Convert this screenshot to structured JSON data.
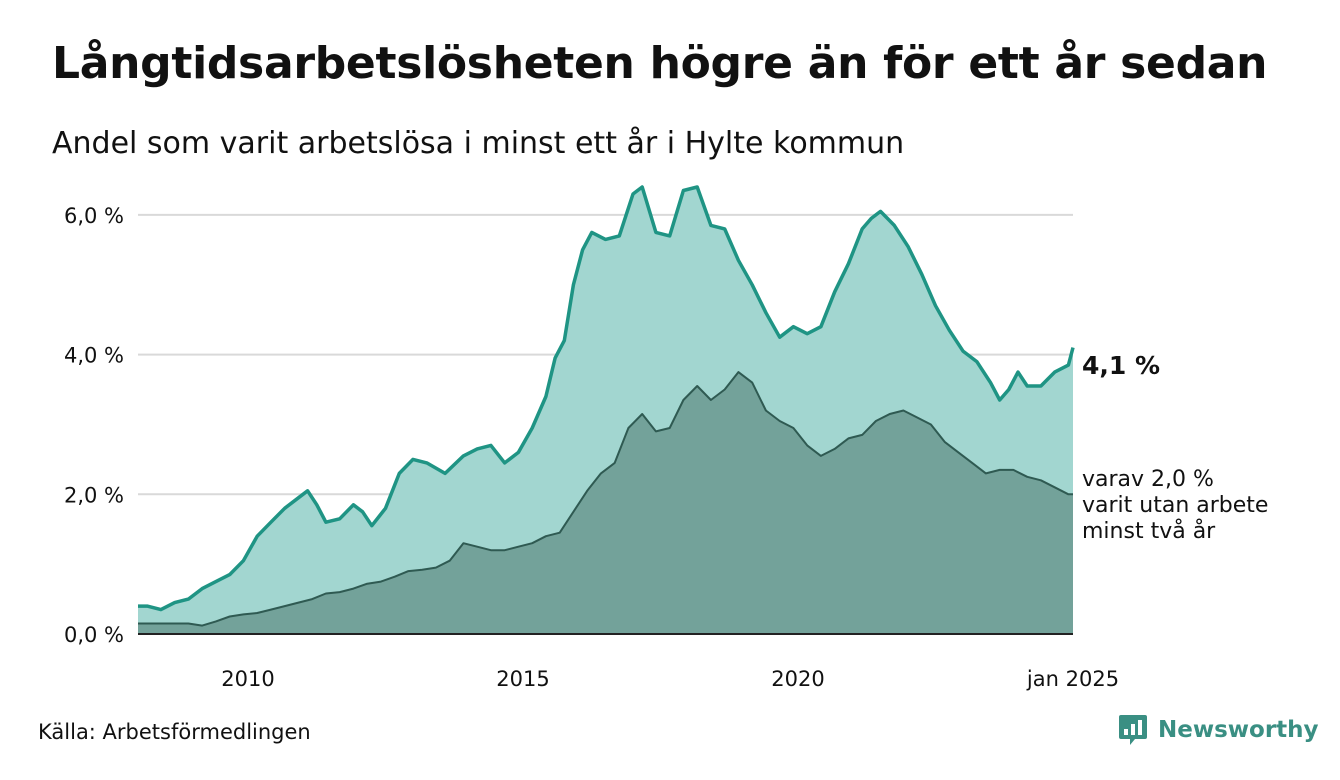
{
  "title": "Långtidsarbetslösheten högre än för ett år sedan",
  "subtitle": "Andel som varit arbetslösa i minst ett år i Hylte kommun",
  "source": "Källa: Arbetsförmedlingen",
  "brand": "Newsworthy",
  "colors": {
    "series1_line": "#1f9484",
    "series1_fill": "#a2d6d0",
    "series2_line": "#2f5a52",
    "series2_fill": "#73a29a",
    "grid": "#d9d9d9",
    "brand": "#3a8f83"
  },
  "chart_data": {
    "type": "area",
    "x_unit": "month",
    "x_start": "2008-01",
    "x_end": "2025-01",
    "xlim": [
      "2008-01",
      "2025-01"
    ],
    "ylim": [
      0,
      6.5
    ],
    "y_ticks": [
      {
        "value": 0,
        "label": "0,0 %"
      },
      {
        "value": 2,
        "label": "2,0 %"
      },
      {
        "value": 4,
        "label": "4,0 %"
      },
      {
        "value": 6,
        "label": "6,0 %"
      }
    ],
    "x_ticks": [
      {
        "date": "2010-01",
        "label": "2010"
      },
      {
        "date": "2015-01",
        "label": "2015"
      },
      {
        "date": "2020-01",
        "label": "2020"
      },
      {
        "date": "2025-01",
        "label": "jan 2025"
      }
    ],
    "grid": "horizontal",
    "series": [
      {
        "key": "minst_ett_ar",
        "end_label": "4,1 %",
        "points": [
          [
            "2008-01",
            0.4
          ],
          [
            "2008-03",
            0.4
          ],
          [
            "2008-06",
            0.35
          ],
          [
            "2008-09",
            0.45
          ],
          [
            "2008-12",
            0.5
          ],
          [
            "2009-03",
            0.65
          ],
          [
            "2009-06",
            0.75
          ],
          [
            "2009-09",
            0.85
          ],
          [
            "2009-12",
            1.05
          ],
          [
            "2010-03",
            1.4
          ],
          [
            "2010-06",
            1.6
          ],
          [
            "2010-09",
            1.8
          ],
          [
            "2010-12",
            1.95
          ],
          [
            "2011-02",
            2.05
          ],
          [
            "2011-04",
            1.85
          ],
          [
            "2011-06",
            1.6
          ],
          [
            "2011-09",
            1.65
          ],
          [
            "2011-12",
            1.85
          ],
          [
            "2012-02",
            1.75
          ],
          [
            "2012-04",
            1.55
          ],
          [
            "2012-07",
            1.8
          ],
          [
            "2012-10",
            2.3
          ],
          [
            "2013-01",
            2.5
          ],
          [
            "2013-04",
            2.45
          ],
          [
            "2013-08",
            2.3
          ],
          [
            "2013-12",
            2.55
          ],
          [
            "2014-03",
            2.65
          ],
          [
            "2014-06",
            2.7
          ],
          [
            "2014-09",
            2.45
          ],
          [
            "2014-12",
            2.6
          ],
          [
            "2015-03",
            2.95
          ],
          [
            "2015-06",
            3.4
          ],
          [
            "2015-08",
            3.95
          ],
          [
            "2015-10",
            4.2
          ],
          [
            "2015-12",
            5.0
          ],
          [
            "2016-02",
            5.5
          ],
          [
            "2016-04",
            5.75
          ],
          [
            "2016-07",
            5.65
          ],
          [
            "2016-10",
            5.7
          ],
          [
            "2017-01",
            6.3
          ],
          [
            "2017-03",
            6.4
          ],
          [
            "2017-06",
            5.75
          ],
          [
            "2017-09",
            5.7
          ],
          [
            "2017-12",
            6.35
          ],
          [
            "2018-03",
            6.4
          ],
          [
            "2018-06",
            5.85
          ],
          [
            "2018-09",
            5.8
          ],
          [
            "2018-12",
            5.35
          ],
          [
            "2019-03",
            5.0
          ],
          [
            "2019-06",
            4.6
          ],
          [
            "2019-09",
            4.25
          ],
          [
            "2019-12",
            4.4
          ],
          [
            "2020-03",
            4.3
          ],
          [
            "2020-06",
            4.4
          ],
          [
            "2020-09",
            4.9
          ],
          [
            "2020-12",
            5.3
          ],
          [
            "2021-03",
            5.8
          ],
          [
            "2021-05",
            5.95
          ],
          [
            "2021-07",
            6.05
          ],
          [
            "2021-10",
            5.85
          ],
          [
            "2022-01",
            5.55
          ],
          [
            "2022-04",
            5.15
          ],
          [
            "2022-07",
            4.7
          ],
          [
            "2022-10",
            4.35
          ],
          [
            "2023-01",
            4.05
          ],
          [
            "2023-04",
            3.9
          ],
          [
            "2023-07",
            3.6
          ],
          [
            "2023-09",
            3.35
          ],
          [
            "2023-11",
            3.5
          ],
          [
            "2024-01",
            3.75
          ],
          [
            "2024-03",
            3.55
          ],
          [
            "2024-06",
            3.55
          ],
          [
            "2024-09",
            3.75
          ],
          [
            "2024-12",
            3.85
          ],
          [
            "2025-01",
            4.1
          ]
        ]
      },
      {
        "key": "minst_tva_ar",
        "end_label": [
          "varav 2,0 %",
          "varit utan arbete",
          "minst två år"
        ],
        "points": [
          [
            "2008-01",
            0.15
          ],
          [
            "2008-06",
            0.15
          ],
          [
            "2008-12",
            0.15
          ],
          [
            "2009-03",
            0.12
          ],
          [
            "2009-06",
            0.18
          ],
          [
            "2009-09",
            0.25
          ],
          [
            "2009-12",
            0.28
          ],
          [
            "2010-03",
            0.3
          ],
          [
            "2010-06",
            0.35
          ],
          [
            "2010-09",
            0.4
          ],
          [
            "2010-12",
            0.45
          ],
          [
            "2011-03",
            0.5
          ],
          [
            "2011-06",
            0.58
          ],
          [
            "2011-09",
            0.6
          ],
          [
            "2011-12",
            0.65
          ],
          [
            "2012-03",
            0.72
          ],
          [
            "2012-06",
            0.75
          ],
          [
            "2012-09",
            0.82
          ],
          [
            "2012-12",
            0.9
          ],
          [
            "2013-03",
            0.92
          ],
          [
            "2013-06",
            0.95
          ],
          [
            "2013-09",
            1.05
          ],
          [
            "2013-12",
            1.3
          ],
          [
            "2014-03",
            1.25
          ],
          [
            "2014-06",
            1.2
          ],
          [
            "2014-09",
            1.2
          ],
          [
            "2014-12",
            1.25
          ],
          [
            "2015-03",
            1.3
          ],
          [
            "2015-06",
            1.4
          ],
          [
            "2015-09",
            1.45
          ],
          [
            "2015-12",
            1.75
          ],
          [
            "2016-03",
            2.05
          ],
          [
            "2016-06",
            2.3
          ],
          [
            "2016-09",
            2.45
          ],
          [
            "2016-12",
            2.95
          ],
          [
            "2017-03",
            3.15
          ],
          [
            "2017-06",
            2.9
          ],
          [
            "2017-09",
            2.95
          ],
          [
            "2017-12",
            3.35
          ],
          [
            "2018-03",
            3.55
          ],
          [
            "2018-06",
            3.35
          ],
          [
            "2018-09",
            3.5
          ],
          [
            "2018-12",
            3.75
          ],
          [
            "2019-03",
            3.6
          ],
          [
            "2019-06",
            3.2
          ],
          [
            "2019-09",
            3.05
          ],
          [
            "2019-12",
            2.95
          ],
          [
            "2020-03",
            2.7
          ],
          [
            "2020-06",
            2.55
          ],
          [
            "2020-09",
            2.65
          ],
          [
            "2020-12",
            2.8
          ],
          [
            "2021-03",
            2.85
          ],
          [
            "2021-06",
            3.05
          ],
          [
            "2021-09",
            3.15
          ],
          [
            "2021-12",
            3.2
          ],
          [
            "2022-03",
            3.1
          ],
          [
            "2022-06",
            3.0
          ],
          [
            "2022-09",
            2.75
          ],
          [
            "2022-12",
            2.6
          ],
          [
            "2023-03",
            2.45
          ],
          [
            "2023-06",
            2.3
          ],
          [
            "2023-09",
            2.35
          ],
          [
            "2023-12",
            2.35
          ],
          [
            "2024-03",
            2.25
          ],
          [
            "2024-06",
            2.2
          ],
          [
            "2024-09",
            2.1
          ],
          [
            "2024-12",
            2.0
          ],
          [
            "2025-01",
            2.0
          ]
        ]
      }
    ]
  }
}
